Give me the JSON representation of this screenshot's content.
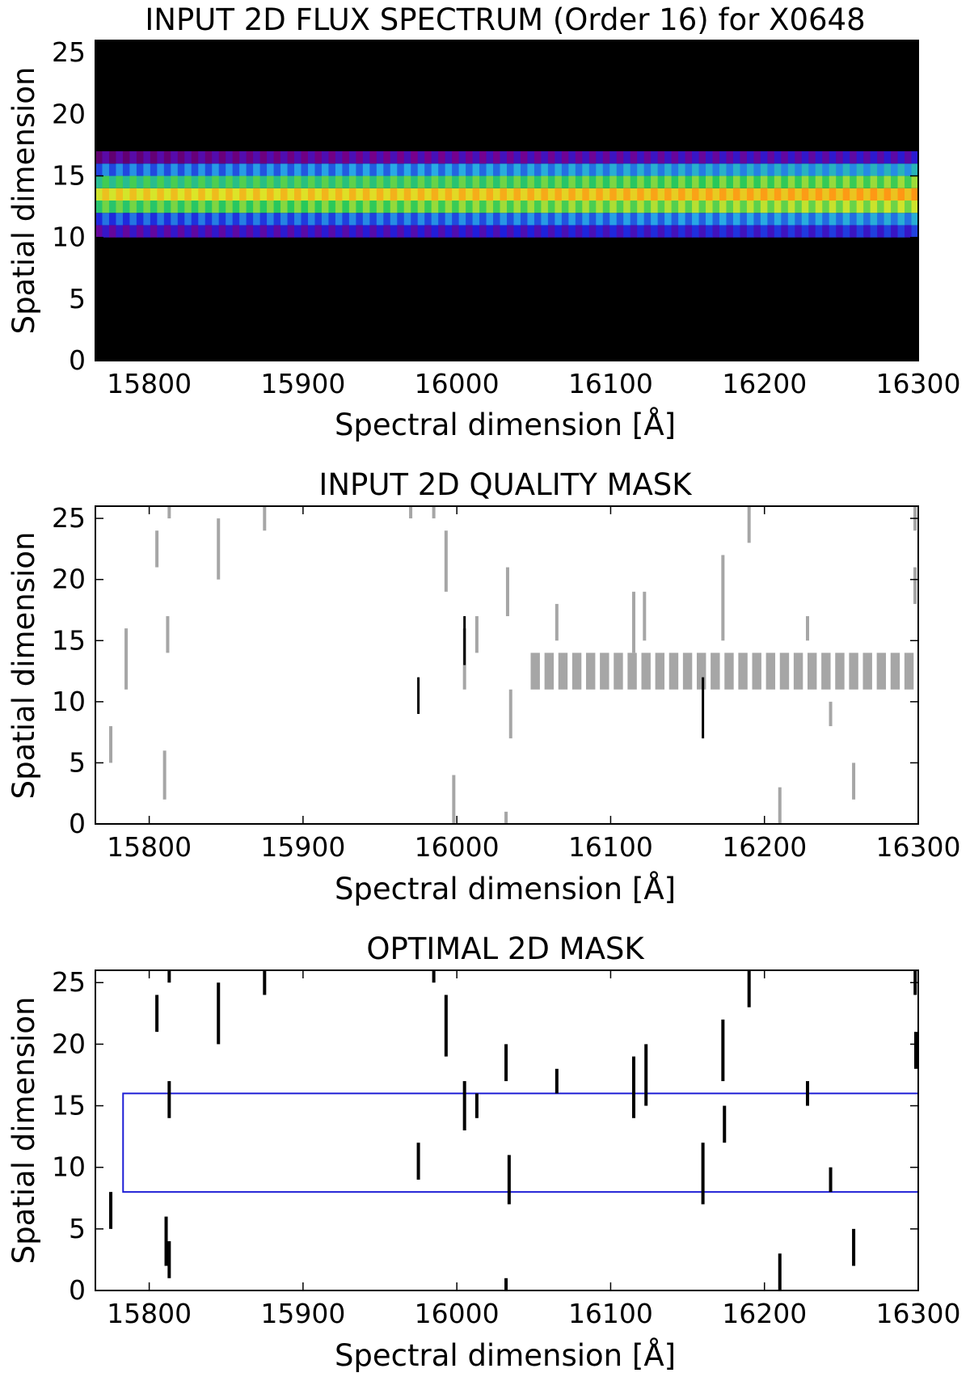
{
  "chart_data": [
    {
      "type": "heatmap",
      "title": "INPUT 2D FLUX SPECTRUM (Order 16) for X0648",
      "xlabel": "Spectral dimension [Å]",
      "ylabel": "Spatial dimension",
      "xlim": [
        15765,
        16300
      ],
      "ylim": [
        0,
        26
      ],
      "xticks": [
        15800,
        15900,
        16000,
        16100,
        16200,
        16300
      ],
      "yticks": [
        0,
        5,
        10,
        15,
        20,
        25
      ],
      "colormap": "gnuplot2-like (black-purple-blue-green-yellow-orange)",
      "rows": [
        {
          "y": 10,
          "level": 0.22
        },
        {
          "y": 11,
          "level": 0.35
        },
        {
          "y": 12,
          "level": 0.62
        },
        {
          "y": 13,
          "level": 0.78
        },
        {
          "y": 14,
          "level": 0.58
        },
        {
          "y": 15,
          "level": 0.38
        },
        {
          "y": 16,
          "level": 0.16
        }
      ]
    },
    {
      "type": "scatter",
      "title": "INPUT 2D QUALITY MASK",
      "xlabel": "Spectral dimension [Å]",
      "ylabel": "Spatial dimension",
      "xlim": [
        15765,
        16300
      ],
      "ylim": [
        0,
        26
      ],
      "xticks": [
        15800,
        15900,
        16000,
        16100,
        16200,
        16300
      ],
      "yticks": [
        0,
        5,
        10,
        15,
        20,
        25
      ],
      "gray_segments": [
        [
          15775,
          5,
          8
        ],
        [
          15785,
          11,
          16
        ],
        [
          15805,
          21,
          24
        ],
        [
          15810,
          2,
          6
        ],
        [
          15812,
          14,
          17
        ],
        [
          15813,
          25,
          26
        ],
        [
          15845,
          20,
          25
        ],
        [
          15875,
          24,
          26
        ],
        [
          15970,
          25,
          26
        ],
        [
          15985,
          25,
          26
        ],
        [
          15993,
          19,
          24
        ],
        [
          15998,
          0,
          4
        ],
        [
          16005,
          11,
          16
        ],
        [
          16013,
          14,
          17
        ],
        [
          16033,
          17,
          21
        ],
        [
          16035,
          7,
          11
        ],
        [
          16032,
          0,
          1
        ],
        [
          16065,
          15,
          18
        ],
        [
          16115,
          14,
          19
        ],
        [
          16122,
          15,
          19
        ],
        [
          16173,
          15,
          22
        ],
        [
          16190,
          23,
          26
        ],
        [
          16210,
          0,
          3
        ],
        [
          16228,
          15,
          17
        ],
        [
          16243,
          8,
          10
        ],
        [
          16258,
          2,
          5
        ],
        [
          16298,
          24,
          26
        ],
        [
          16305,
          18,
          21
        ]
      ],
      "gray_band": {
        "y": [
          11,
          14
        ],
        "x_start": 16048,
        "x_end": 16300
      },
      "black_segments": [
        [
          15975,
          9,
          12
        ],
        [
          16005,
          13,
          17
        ],
        [
          16160,
          7,
          12
        ]
      ]
    },
    {
      "type": "scatter",
      "title": "OPTIMAL 2D MASK",
      "xlabel": "Spectral dimension [Å]",
      "ylabel": "Spatial dimension",
      "xlim": [
        15765,
        16300
      ],
      "ylim": [
        0,
        26
      ],
      "xticks": [
        15800,
        15900,
        16000,
        16100,
        16200,
        16300
      ],
      "yticks": [
        0,
        5,
        10,
        15,
        20,
        25
      ],
      "box": {
        "x": [
          15783,
          16300
        ],
        "y": [
          8,
          16
        ],
        "color": "#1f1fd6"
      },
      "black_segments": [
        [
          15775,
          5,
          8
        ],
        [
          15805,
          21,
          24
        ],
        [
          15811,
          2,
          6
        ],
        [
          15813,
          1,
          4
        ],
        [
          15813,
          14,
          17
        ],
        [
          15813,
          25,
          26
        ],
        [
          15845,
          20,
          25
        ],
        [
          15875,
          24,
          26
        ],
        [
          15975,
          9,
          12
        ],
        [
          15985,
          25,
          26
        ],
        [
          15993,
          19,
          24
        ],
        [
          16005,
          13,
          17
        ],
        [
          16013,
          14,
          16
        ],
        [
          16032,
          17,
          20
        ],
        [
          16034,
          7,
          11
        ],
        [
          16032,
          0,
          1
        ],
        [
          16065,
          16,
          18
        ],
        [
          16115,
          14,
          19
        ],
        [
          16123,
          15,
          20
        ],
        [
          16160,
          7,
          12
        ],
        [
          16173,
          17,
          22
        ],
        [
          16174,
          12,
          15
        ],
        [
          16190,
          23,
          26
        ],
        [
          16210,
          0,
          3
        ],
        [
          16228,
          15,
          17
        ],
        [
          16243,
          8,
          10
        ],
        [
          16258,
          2,
          5
        ],
        [
          16298,
          24,
          26
        ],
        [
          16305,
          18,
          21
        ]
      ]
    }
  ]
}
